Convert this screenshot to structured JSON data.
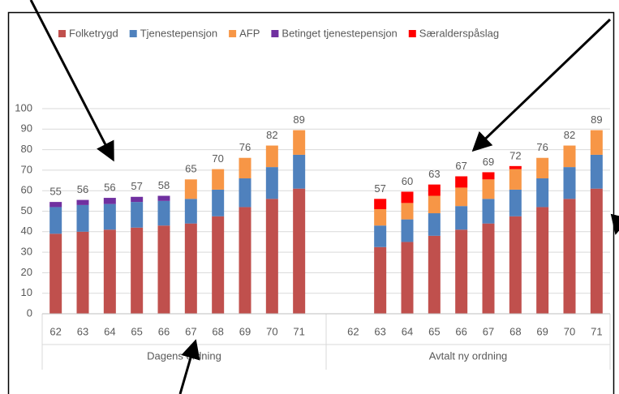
{
  "chart_data": {
    "type": "stacked_bar",
    "groups": [
      {
        "label": "Dagens ordning",
        "categories": [
          "62",
          "63",
          "64",
          "65",
          "66",
          "67",
          "68",
          "69",
          "70",
          "71"
        ]
      },
      {
        "label": "Avtalt ny ordning",
        "categories": [
          "62",
          "63",
          "64",
          "65",
          "66",
          "67",
          "68",
          "69",
          "70",
          "71"
        ]
      }
    ],
    "series": [
      {
        "name": "Folketrygd",
        "color": "#c0504d",
        "values": [
          39,
          40,
          41,
          42,
          43,
          44,
          47.5,
          52,
          56,
          61,
          null,
          32.5,
          35,
          38,
          41,
          44,
          47.5,
          52,
          56,
          61
        ]
      },
      {
        "name": "Tjenestepensjon",
        "color": "#4f81bd",
        "values": [
          13,
          13,
          12.5,
          12.5,
          12,
          12,
          13,
          14,
          15.5,
          16.5,
          null,
          10.5,
          11,
          11,
          11.5,
          12,
          13,
          14,
          15.5,
          16.5
        ]
      },
      {
        "name": "AFP",
        "color": "#f79646",
        "values": [
          null,
          null,
          null,
          null,
          null,
          9.5,
          10,
          10,
          10.5,
          12,
          null,
          8,
          8,
          8.5,
          9,
          9.5,
          10,
          10,
          10.5,
          12
        ]
      },
      {
        "name": "Betinget tjenestepensjon",
        "color": "#7030a0",
        "values": [
          2.5,
          2.5,
          3,
          2.5,
          2.5,
          null,
          null,
          null,
          null,
          null,
          null,
          null,
          null,
          null,
          null,
          null,
          null,
          null,
          null,
          null
        ]
      },
      {
        "name": "Særalderspåslag",
        "color": "#ff0000",
        "values": [
          null,
          null,
          null,
          null,
          null,
          null,
          null,
          null,
          null,
          null,
          null,
          5,
          5.5,
          5.5,
          5.5,
          3.5,
          1.5,
          null,
          null,
          null
        ]
      }
    ],
    "total_labels": [
      55,
      56,
      56,
      57,
      58,
      65,
      70,
      76,
      82,
      89,
      null,
      57,
      60,
      63,
      67,
      69,
      72,
      76,
      82,
      89
    ],
    "ylim": [
      0,
      100
    ],
    "yticks": [
      0,
      10,
      20,
      30,
      40,
      50,
      60,
      70,
      80,
      90,
      100
    ],
    "grid": true,
    "legend": "top"
  }
}
